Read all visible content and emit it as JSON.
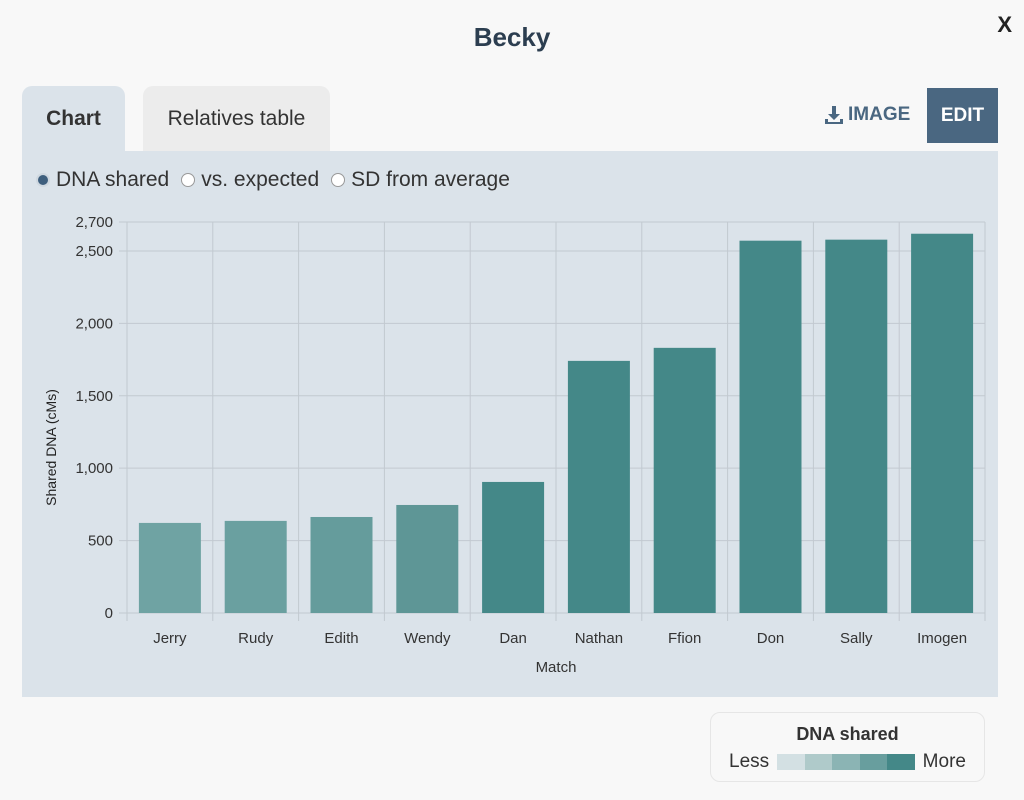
{
  "title": "Becky",
  "close_label": "X",
  "tabs": [
    {
      "label": "Chart",
      "active": true
    },
    {
      "label": "Relatives table",
      "active": false
    }
  ],
  "toolbar": {
    "image_label": "IMAGE",
    "edit_label": "EDIT",
    "image_icon": "download-icon"
  },
  "radios": [
    {
      "label": "DNA shared",
      "checked": true
    },
    {
      "label": "vs. expected",
      "checked": false
    },
    {
      "label": "SD from average",
      "checked": false
    }
  ],
  "legend": {
    "title": "DNA shared",
    "less": "Less",
    "more": "More",
    "colors": [
      "#d3e0e3",
      "#afcaca",
      "#8bb4b4",
      "#689e9e",
      "#448888"
    ]
  },
  "chart_data": {
    "type": "bar",
    "categories": [
      "Jerry",
      "Rudy",
      "Edith",
      "Wendy",
      "Dan",
      "Nathan",
      "Ffion",
      "Don",
      "Sally",
      "Imogen"
    ],
    "values": [
      622,
      636,
      663,
      746,
      905,
      1741,
      1831,
      2571,
      2578,
      2619
    ],
    "colors": [
      "#6fa3a3",
      "#6aa0a0",
      "#659c9c",
      "#5e9696",
      "#448888",
      "#448888",
      "#448888",
      "#448888",
      "#448888",
      "#448888"
    ],
    "xlabel": "Match",
    "ylabel": "Shared DNA (cMs)",
    "ylim": [
      0,
      2700
    ],
    "yticks": [
      0,
      500,
      1000,
      1500,
      2000,
      2500,
      2700
    ],
    "ytick_labels": [
      "0",
      "500",
      "1,000",
      "1,500",
      "2,000",
      "2,500",
      "2,700"
    ],
    "grid": true
  }
}
